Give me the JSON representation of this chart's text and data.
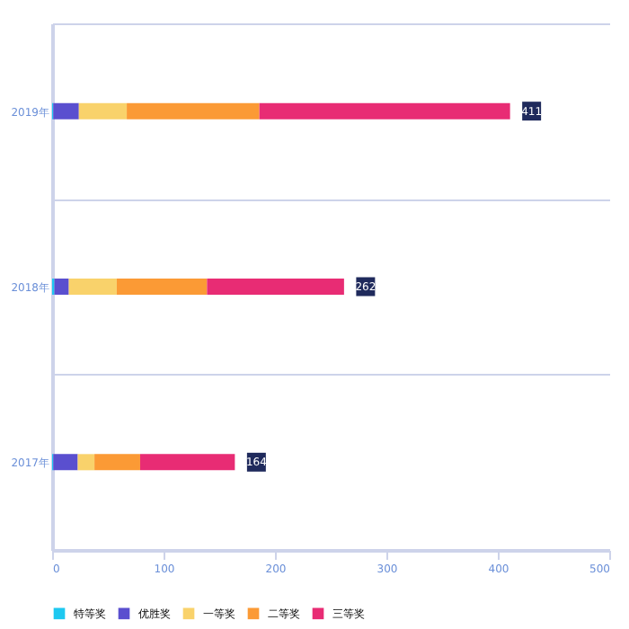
{
  "chart_data": {
    "type": "bar",
    "orientation": "horizontal",
    "stacked": true,
    "categories": [
      "2019年",
      "2018年",
      "2017年"
    ],
    "series": [
      {
        "name": "特等奖",
        "color": "#1ec8f0",
        "values": [
          1,
          2,
          1
        ]
      },
      {
        "name": "优胜奖",
        "color": "#5a4fcf",
        "values": [
          23,
          13,
          22
        ]
      },
      {
        "name": "一等奖",
        "color": "#f9d26b",
        "values": [
          43,
          43,
          15
        ]
      },
      {
        "name": "二等奖",
        "color": "#fb9a35",
        "values": [
          119,
          81,
          41
        ]
      },
      {
        "name": "三等奖",
        "color": "#e82c74",
        "values": [
          225,
          123,
          85
        ]
      }
    ],
    "totals": [
      "411",
      "262",
      "164"
    ],
    "xlim": [
      0,
      500
    ],
    "xticks": [
      0,
      100,
      200,
      300,
      400,
      500
    ],
    "grid": "y",
    "legend": "bottom"
  }
}
